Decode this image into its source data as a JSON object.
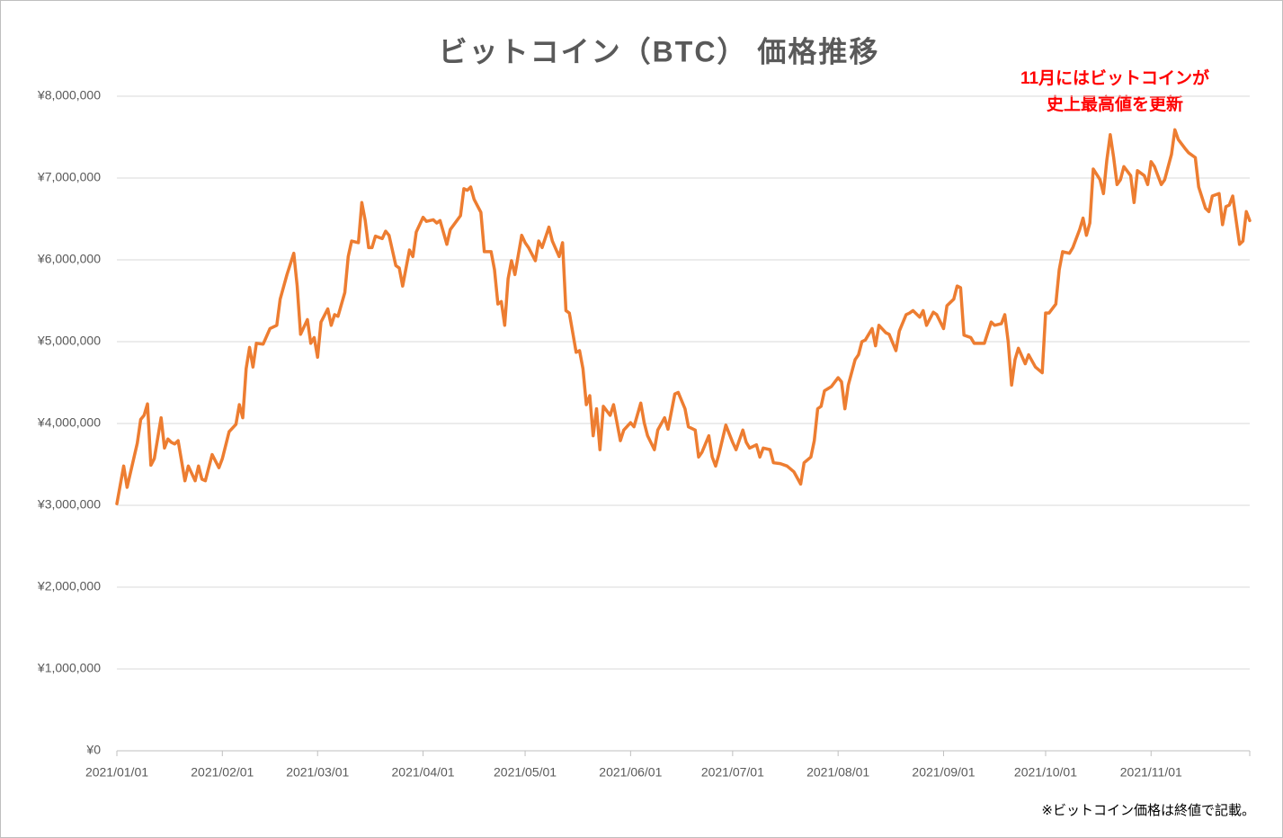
{
  "chart_data": {
    "type": "line",
    "title": "ビットコイン（BTC） 価格推移",
    "annotation": [
      "11月にはビットコインが",
      "史上最高値を更新"
    ],
    "footnote": "※ビットコイン価格は終値で記載。",
    "grid": true,
    "xlim": [
      "2021/01/01",
      "2021/11/30"
    ],
    "xticks": [
      "2021/01/01",
      "2021/02/01",
      "2021/03/01",
      "2021/04/01",
      "2021/05/01",
      "2021/06/01",
      "2021/07/01",
      "2021/08/01",
      "2021/09/01",
      "2021/10/01",
      "2021/11/01"
    ],
    "ylim": [
      0,
      8000000
    ],
    "yticks": [
      {
        "value": 0,
        "label": "¥0"
      },
      {
        "value": 1000000,
        "label": "¥1,000,000"
      },
      {
        "value": 2000000,
        "label": "¥2,000,000"
      },
      {
        "value": 3000000,
        "label": "¥3,000,000"
      },
      {
        "value": 4000000,
        "label": "¥4,000,000"
      },
      {
        "value": 5000000,
        "label": "¥5,000,000"
      },
      {
        "value": 6000000,
        "label": "¥6,000,000"
      },
      {
        "value": 7000000,
        "label": "¥7,000,000"
      },
      {
        "value": 8000000,
        "label": "¥8,000,000"
      }
    ],
    "x": [
      "2021/01/01",
      "2021/01/03",
      "2021/01/04",
      "2021/01/07",
      "2021/01/08",
      "2021/01/09",
      "2021/01/10",
      "2021/01/11",
      "2021/01/12",
      "2021/01/14",
      "2021/01/15",
      "2021/01/16",
      "2021/01/17",
      "2021/01/18",
      "2021/01/19",
      "2021/01/21",
      "2021/01/22",
      "2021/01/24",
      "2021/01/25",
      "2021/01/26",
      "2021/01/27",
      "2021/01/29",
      "2021/01/31",
      "2021/02/01",
      "2021/02/03",
      "2021/02/05",
      "2021/02/06",
      "2021/02/07",
      "2021/02/08",
      "2021/02/09",
      "2021/02/10",
      "2021/02/11",
      "2021/02/13",
      "2021/02/15",
      "2021/02/17",
      "2021/02/18",
      "2021/02/20",
      "2021/02/22",
      "2021/02/23",
      "2021/02/24",
      "2021/02/26",
      "2021/02/27",
      "2021/02/28",
      "2021/03/01",
      "2021/03/02",
      "2021/03/04",
      "2021/03/05",
      "2021/03/06",
      "2021/03/07",
      "2021/03/09",
      "2021/03/10",
      "2021/03/11",
      "2021/03/13",
      "2021/03/14",
      "2021/03/15",
      "2021/03/16",
      "2021/03/17",
      "2021/03/18",
      "2021/03/20",
      "2021/03/21",
      "2021/03/22",
      "2021/03/24",
      "2021/03/25",
      "2021/03/26",
      "2021/03/28",
      "2021/03/29",
      "2021/03/30",
      "2021/04/01",
      "2021/04/02",
      "2021/04/04",
      "2021/04/05",
      "2021/04/06",
      "2021/04/08",
      "2021/04/09",
      "2021/04/12",
      "2021/04/13",
      "2021/04/14",
      "2021/04/15",
      "2021/04/16",
      "2021/04/18",
      "2021/04/19",
      "2021/04/21",
      "2021/04/22",
      "2021/04/23",
      "2021/04/24",
      "2021/04/25",
      "2021/04/26",
      "2021/04/27",
      "2021/04/28",
      "2021/04/30",
      "2021/05/01",
      "2021/05/02",
      "2021/05/04",
      "2021/05/05",
      "2021/05/06",
      "2021/05/08",
      "2021/05/09",
      "2021/05/11",
      "2021/05/12",
      "2021/05/13",
      "2021/05/14",
      "2021/05/16",
      "2021/05/17",
      "2021/05/18",
      "2021/05/19",
      "2021/05/20",
      "2021/05/21",
      "2021/05/22",
      "2021/05/23",
      "2021/05/24",
      "2021/05/26",
      "2021/05/27",
      "2021/05/29",
      "2021/05/30",
      "2021/06/01",
      "2021/06/02",
      "2021/06/04",
      "2021/06/05",
      "2021/06/06",
      "2021/06/08",
      "2021/06/09",
      "2021/06/11",
      "2021/06/12",
      "2021/06/14",
      "2021/06/15",
      "2021/06/17",
      "2021/06/18",
      "2021/06/20",
      "2021/06/21",
      "2021/06/22",
      "2021/06/24",
      "2021/06/25",
      "2021/06/26",
      "2021/06/27",
      "2021/06/29",
      "2021/07/01",
      "2021/07/02",
      "2021/07/04",
      "2021/07/05",
      "2021/07/06",
      "2021/07/08",
      "2021/07/09",
      "2021/07/10",
      "2021/07/12",
      "2021/07/13",
      "2021/07/15",
      "2021/07/17",
      "2021/07/19",
      "2021/07/21",
      "2021/07/22",
      "2021/07/24",
      "2021/07/25",
      "2021/07/26",
      "2021/07/27",
      "2021/07/28",
      "2021/07/30",
      "2021/08/01",
      "2021/08/02",
      "2021/08/03",
      "2021/08/04",
      "2021/08/06",
      "2021/08/07",
      "2021/08/08",
      "2021/08/09",
      "2021/08/11",
      "2021/08/12",
      "2021/08/13",
      "2021/08/15",
      "2021/08/16",
      "2021/08/18",
      "2021/08/19",
      "2021/08/21",
      "2021/08/22",
      "2021/08/23",
      "2021/08/25",
      "2021/08/26",
      "2021/08/27",
      "2021/08/29",
      "2021/08/30",
      "2021/09/01",
      "2021/09/02",
      "2021/09/04",
      "2021/09/05",
      "2021/09/06",
      "2021/09/07",
      "2021/09/09",
      "2021/09/10",
      "2021/09/11",
      "2021/09/13",
      "2021/09/15",
      "2021/09/16",
      "2021/09/18",
      "2021/09/19",
      "2021/09/20",
      "2021/09/21",
      "2021/09/22",
      "2021/09/23",
      "2021/09/25",
      "2021/09/26",
      "2021/09/28",
      "2021/09/30",
      "2021/10/01",
      "2021/10/02",
      "2021/10/04",
      "2021/10/05",
      "2021/10/06",
      "2021/10/08",
      "2021/10/09",
      "2021/10/11",
      "2021/10/12",
      "2021/10/13",
      "2021/10/14",
      "2021/10/15",
      "2021/10/17",
      "2021/10/18",
      "2021/10/19",
      "2021/10/20",
      "2021/10/21",
      "2021/10/22",
      "2021/10/23",
      "2021/10/24",
      "2021/10/26",
      "2021/10/27",
      "2021/10/28",
      "2021/10/30",
      "2021/10/31",
      "2021/11/01",
      "2021/11/02",
      "2021/11/04",
      "2021/11/05",
      "2021/11/07",
      "2021/11/08",
      "2021/11/09",
      "2021/11/11",
      "2021/11/12",
      "2021/11/14",
      "2021/11/15",
      "2021/11/17",
      "2021/11/18",
      "2021/11/19",
      "2021/11/21",
      "2021/11/22",
      "2021/11/23",
      "2021/11/24",
      "2021/11/25",
      "2021/11/27",
      "2021/11/28",
      "2021/11/29",
      "2021/11/30"
    ],
    "series": [
      {
        "name": "BTC",
        "color": "#ed7d31",
        "values": [
          3020000,
          3480000,
          3220000,
          3760000,
          4050000,
          4100000,
          4240000,
          3490000,
          3570000,
          4070000,
          3700000,
          3810000,
          3770000,
          3750000,
          3790000,
          3300000,
          3480000,
          3300000,
          3480000,
          3320000,
          3300000,
          3620000,
          3460000,
          3570000,
          3900000,
          3990000,
          4230000,
          4070000,
          4670000,
          4930000,
          4690000,
          4980000,
          4970000,
          5160000,
          5200000,
          5520000,
          5820000,
          6080000,
          5680000,
          5090000,
          5270000,
          4980000,
          5050000,
          4810000,
          5240000,
          5400000,
          5200000,
          5330000,
          5310000,
          5600000,
          6040000,
          6230000,
          6210000,
          6700000,
          6480000,
          6150000,
          6150000,
          6290000,
          6260000,
          6350000,
          6300000,
          5930000,
          5900000,
          5680000,
          6120000,
          6040000,
          6340000,
          6520000,
          6470000,
          6490000,
          6450000,
          6480000,
          6190000,
          6370000,
          6540000,
          6870000,
          6850000,
          6890000,
          6740000,
          6580000,
          6100000,
          6100000,
          5880000,
          5460000,
          5490000,
          5200000,
          5770000,
          5990000,
          5820000,
          6300000,
          6210000,
          6150000,
          5990000,
          6230000,
          6150000,
          6400000,
          6230000,
          6040000,
          6210000,
          5380000,
          5350000,
          4870000,
          4890000,
          4670000,
          4230000,
          4340000,
          3850000,
          4180000,
          3680000,
          4210000,
          4100000,
          4230000,
          3790000,
          3920000,
          4010000,
          3960000,
          4250000,
          4010000,
          3850000,
          3680000,
          3920000,
          4070000,
          3930000,
          4360000,
          4380000,
          4180000,
          3960000,
          3920000,
          3590000,
          3650000,
          3850000,
          3590000,
          3480000,
          3630000,
          3980000,
          3770000,
          3680000,
          3920000,
          3770000,
          3700000,
          3740000,
          3590000,
          3700000,
          3680000,
          3520000,
          3510000,
          3480000,
          3410000,
          3260000,
          3520000,
          3590000,
          3790000,
          4180000,
          4210000,
          4400000,
          4450000,
          4560000,
          4510000,
          4180000,
          4470000,
          4780000,
          4840000,
          5000000,
          5020000,
          5160000,
          4950000,
          5200000,
          5110000,
          5090000,
          4890000,
          5130000,
          5330000,
          5350000,
          5380000,
          5300000,
          5380000,
          5200000,
          5360000,
          5330000,
          5160000,
          5440000,
          5520000,
          5680000,
          5660000,
          5080000,
          5050000,
          4980000,
          4980000,
          4980000,
          5240000,
          5200000,
          5220000,
          5330000,
          5000000,
          4470000,
          4780000,
          4920000,
          4730000,
          4840000,
          4690000,
          4620000,
          5350000,
          5350000,
          5460000,
          5880000,
          6100000,
          6080000,
          6150000,
          6370000,
          6510000,
          6300000,
          6450000,
          7110000,
          6980000,
          6810000,
          7220000,
          7530000,
          7250000,
          6920000,
          6980000,
          7140000,
          7030000,
          6700000,
          7090000,
          7030000,
          6920000,
          7200000,
          7140000,
          6920000,
          6980000,
          7290000,
          7590000,
          7470000,
          7360000,
          7310000,
          7250000,
          6890000,
          6630000,
          6590000,
          6780000,
          6810000,
          6430000,
          6650000,
          6670000,
          6780000,
          6190000,
          6230000,
          6590000,
          6480000
        ]
      }
    ]
  }
}
